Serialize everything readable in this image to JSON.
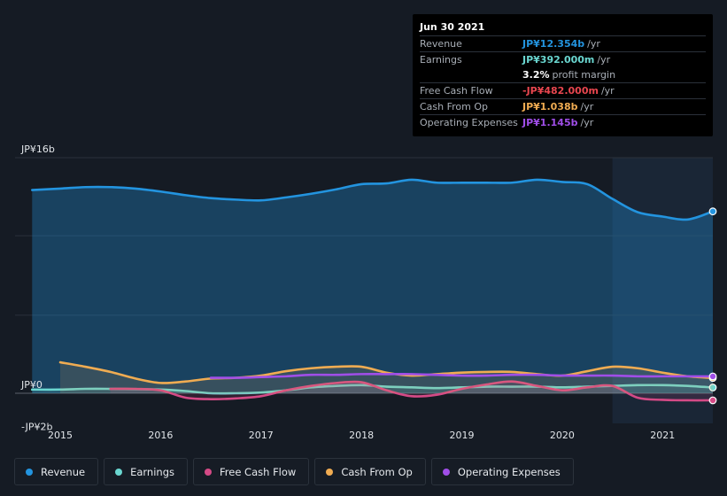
{
  "tooltip": {
    "date": "Jun 30 2021",
    "rows": [
      {
        "label": "Revenue",
        "value": "JP¥12.354b",
        "unit": "/yr",
        "color": "#2394df"
      },
      {
        "label": "Earnings",
        "value": "JP¥392.000m",
        "unit": "/yr",
        "color": "#6ad6d0"
      },
      {
        "label": "",
        "value": "3.2%",
        "unit": "profit margin",
        "color": "#ffffff"
      },
      {
        "label": "Free Cash Flow",
        "value": "-JP¥482.000m",
        "unit": "/yr",
        "color": "#e8464f"
      },
      {
        "label": "Cash From Op",
        "value": "JP¥1.038b",
        "unit": "/yr",
        "color": "#f0ac52"
      },
      {
        "label": "Operating Expenses",
        "value": "JP¥1.145b",
        "unit": "/yr",
        "color": "#a04ee8"
      }
    ]
  },
  "legend": [
    {
      "label": "Revenue",
      "color": "#2394df"
    },
    {
      "label": "Earnings",
      "color": "#6ad6d0"
    },
    {
      "label": "Free Cash Flow",
      "color": "#d44a86"
    },
    {
      "label": "Cash From Op",
      "color": "#f0ac52"
    },
    {
      "label": "Operating Expenses",
      "color": "#a04ee8"
    }
  ],
  "chart_data": {
    "type": "area",
    "unit": "JP¥ billions",
    "y_tick_labels": [
      "JP¥16b",
      "JP¥0",
      "-JP¥2b"
    ],
    "y_ticks": [
      16,
      0,
      -2
    ],
    "ylim": [
      -2,
      16
    ],
    "x_tick_labels": [
      "2015",
      "2016",
      "2017",
      "2018",
      "2019",
      "2020",
      "2021"
    ],
    "x_ticks": [
      2015,
      2016,
      2017,
      2018,
      2019,
      2020,
      2021
    ],
    "xlim": [
      2014.55,
      2021.5
    ],
    "forecast_shade_start": 2020.5,
    "series": [
      {
        "name": "Revenue",
        "color": "#2394df",
        "fill": true,
        "x": [
          2014.72,
          2015.0,
          2015.25,
          2015.5,
          2015.75,
          2016.0,
          2016.25,
          2016.5,
          2016.75,
          2017.0,
          2017.25,
          2017.5,
          2017.75,
          2018.0,
          2018.25,
          2018.5,
          2018.75,
          2019.0,
          2019.25,
          2019.5,
          2019.75,
          2020.0,
          2020.25,
          2020.5,
          2020.75,
          2021.0,
          2021.25,
          2021.5
        ],
        "y": [
          13.8,
          13.9,
          14.0,
          14.0,
          13.9,
          13.7,
          13.45,
          13.25,
          13.15,
          13.1,
          13.3,
          13.55,
          13.85,
          14.2,
          14.25,
          14.5,
          14.3,
          14.3,
          14.3,
          14.3,
          14.5,
          14.35,
          14.2,
          13.2,
          12.3,
          12.0,
          11.8,
          12.35
        ]
      },
      {
        "name": "Earnings",
        "color": "#6ad6d0",
        "fill": true,
        "x": [
          2014.72,
          2015.0,
          2015.25,
          2015.5,
          2015.75,
          2016.0,
          2016.25,
          2016.5,
          2016.75,
          2017.0,
          2017.25,
          2017.5,
          2017.75,
          2018.0,
          2018.25,
          2018.5,
          2018.75,
          2019.0,
          2019.25,
          2019.5,
          2019.75,
          2020.0,
          2020.25,
          2020.5,
          2020.75,
          2021.0,
          2021.25,
          2021.5
        ],
        "y": [
          0.25,
          0.25,
          0.3,
          0.3,
          0.28,
          0.25,
          0.15,
          0.0,
          0.0,
          0.05,
          0.2,
          0.4,
          0.5,
          0.55,
          0.45,
          0.4,
          0.35,
          0.4,
          0.45,
          0.45,
          0.45,
          0.4,
          0.45,
          0.5,
          0.55,
          0.55,
          0.5,
          0.39
        ]
      },
      {
        "name": "Free Cash Flow",
        "color": "#d44a86",
        "fill": true,
        "x": [
          2015.5,
          2015.75,
          2016.0,
          2016.25,
          2016.5,
          2016.75,
          2017.0,
          2017.25,
          2017.5,
          2017.75,
          2018.0,
          2018.25,
          2018.5,
          2018.75,
          2019.0,
          2019.25,
          2019.5,
          2019.75,
          2020.0,
          2020.25,
          2020.5,
          2020.75,
          2021.0,
          2021.25,
          2021.5
        ],
        "y": [
          0.3,
          0.3,
          0.2,
          -0.3,
          -0.4,
          -0.35,
          -0.2,
          0.2,
          0.5,
          0.7,
          0.75,
          0.2,
          -0.2,
          -0.1,
          0.3,
          0.6,
          0.8,
          0.5,
          0.2,
          0.4,
          0.5,
          -0.3,
          -0.45,
          -0.48,
          -0.48
        ]
      },
      {
        "name": "Cash From Op",
        "color": "#f0ac52",
        "fill": true,
        "x": [
          2015.0,
          2015.25,
          2015.5,
          2015.75,
          2016.0,
          2016.25,
          2016.5,
          2016.75,
          2017.0,
          2017.25,
          2017.5,
          2017.75,
          2018.0,
          2018.25,
          2018.5,
          2018.75,
          2019.0,
          2019.25,
          2019.5,
          2019.75,
          2020.0,
          2020.25,
          2020.5,
          2020.75,
          2021.0,
          2021.25,
          2021.5
        ],
        "y": [
          2.1,
          1.8,
          1.45,
          1.0,
          0.7,
          0.8,
          1.0,
          1.05,
          1.2,
          1.5,
          1.7,
          1.8,
          1.8,
          1.4,
          1.2,
          1.3,
          1.4,
          1.45,
          1.45,
          1.3,
          1.2,
          1.5,
          1.8,
          1.7,
          1.4,
          1.15,
          1.04
        ]
      },
      {
        "name": "Operating Expenses",
        "color": "#a04ee8",
        "fill": false,
        "x": [
          2016.5,
          2016.75,
          2017.0,
          2017.25,
          2017.5,
          2017.75,
          2018.0,
          2018.25,
          2018.5,
          2018.75,
          2019.0,
          2019.25,
          2019.5,
          2019.75,
          2020.0,
          2020.25,
          2020.5,
          2020.75,
          2021.0,
          2021.25,
          2021.5
        ],
        "y": [
          1.05,
          1.05,
          1.1,
          1.15,
          1.25,
          1.25,
          1.3,
          1.3,
          1.3,
          1.25,
          1.2,
          1.2,
          1.25,
          1.25,
          1.2,
          1.2,
          1.2,
          1.15,
          1.15,
          1.15,
          1.145
        ]
      }
    ]
  }
}
